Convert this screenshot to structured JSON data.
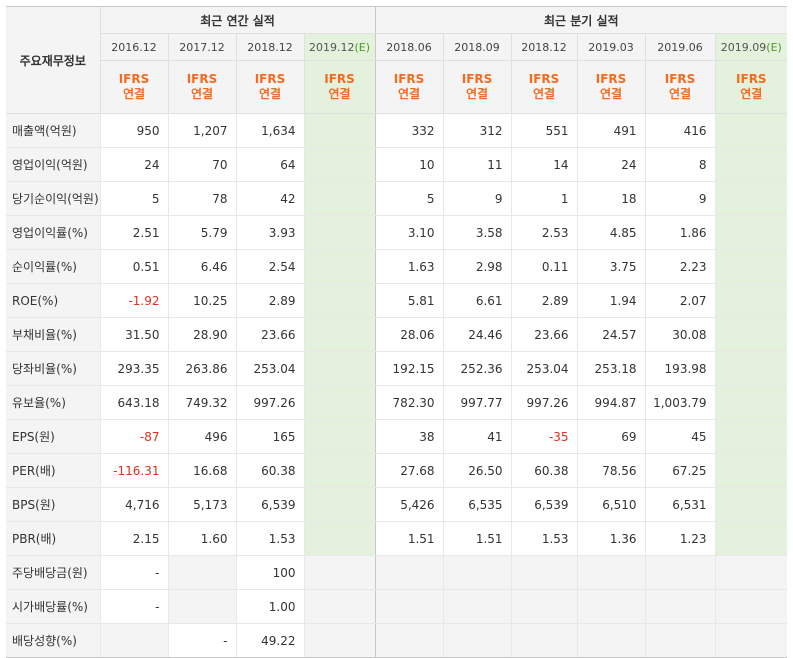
{
  "header": {
    "corner": "주요재무정보",
    "annual_title": "최근 연간 실적",
    "quarter_title": "최근 분기 실적",
    "ifrs_line1": "IFRS",
    "ifrs_line2": "연결",
    "est_mark": "(E)",
    "annual_periods": [
      "2016.12",
      "2017.12",
      "2018.12",
      "2019.12"
    ],
    "quarter_periods": [
      "2018.06",
      "2018.09",
      "2018.12",
      "2019.03",
      "2019.06",
      "2019.09"
    ]
  },
  "rows": [
    {
      "label": "매출액(억원)",
      "values": [
        "950",
        "1,207",
        "1,634",
        "",
        "332",
        "312",
        "551",
        "491",
        "416",
        ""
      ]
    },
    {
      "label": "영업이익(억원)",
      "values": [
        "24",
        "70",
        "64",
        "",
        "10",
        "11",
        "14",
        "24",
        "8",
        ""
      ]
    },
    {
      "label": "당기순이익(억원)",
      "values": [
        "5",
        "78",
        "42",
        "",
        "5",
        "9",
        "1",
        "18",
        "9",
        ""
      ]
    },
    {
      "label": "영업이익률(%)",
      "values": [
        "2.51",
        "5.79",
        "3.93",
        "",
        "3.10",
        "3.58",
        "2.53",
        "4.85",
        "1.86",
        ""
      ]
    },
    {
      "label": "순이익률(%)",
      "values": [
        "0.51",
        "6.46",
        "2.54",
        "",
        "1.63",
        "2.98",
        "0.11",
        "3.75",
        "2.23",
        ""
      ]
    },
    {
      "label": "ROE(%)",
      "values": [
        "-1.92",
        "10.25",
        "2.89",
        "",
        "5.81",
        "6.61",
        "2.89",
        "1.94",
        "2.07",
        ""
      ]
    },
    {
      "label": "부채비율(%)",
      "values": [
        "31.50",
        "28.90",
        "23.66",
        "",
        "28.06",
        "24.46",
        "23.66",
        "24.57",
        "30.08",
        ""
      ]
    },
    {
      "label": "당좌비율(%)",
      "values": [
        "293.35",
        "263.86",
        "253.04",
        "",
        "192.15",
        "252.36",
        "253.04",
        "253.18",
        "193.98",
        ""
      ]
    },
    {
      "label": "유보율(%)",
      "values": [
        "643.18",
        "749.32",
        "997.26",
        "",
        "782.30",
        "997.77",
        "997.26",
        "994.87",
        "1,003.79",
        ""
      ]
    },
    {
      "label": "EPS(원)",
      "values": [
        "-87",
        "496",
        "165",
        "",
        "38",
        "41",
        "-35",
        "69",
        "45",
        ""
      ]
    },
    {
      "label": "PER(배)",
      "values": [
        "-116.31",
        "16.68",
        "60.38",
        "",
        "27.68",
        "26.50",
        "60.38",
        "78.56",
        "67.25",
        ""
      ]
    },
    {
      "label": "BPS(원)",
      "values": [
        "4,716",
        "5,173",
        "6,539",
        "",
        "5,426",
        "6,535",
        "6,539",
        "6,510",
        "6,531",
        ""
      ]
    },
    {
      "label": "PBR(배)",
      "values": [
        "2.15",
        "1.60",
        "1.53",
        "",
        "1.51",
        "1.51",
        "1.53",
        "1.36",
        "1.23",
        ""
      ]
    },
    {
      "label": "주당배당금(원)",
      "values": [
        "-",
        "",
        "100",
        "",
        "",
        "",
        "",
        "",
        "",
        ""
      ]
    },
    {
      "label": "시가배당률(%)",
      "values": [
        "-",
        "",
        "1.00",
        "",
        "",
        "",
        "",
        "",
        "",
        ""
      ]
    },
    {
      "label": "배당성향(%)",
      "values": [
        "",
        "-",
        "49.22",
        "",
        "",
        "",
        "",
        "",
        "",
        ""
      ]
    }
  ],
  "colors": {
    "ifrs": "#f36b21",
    "negative": "#e0301e",
    "estimate_bg": "#e4f1dc",
    "estimate_mark": "#4c9a2a",
    "header_bg": "#f4f4f4"
  }
}
